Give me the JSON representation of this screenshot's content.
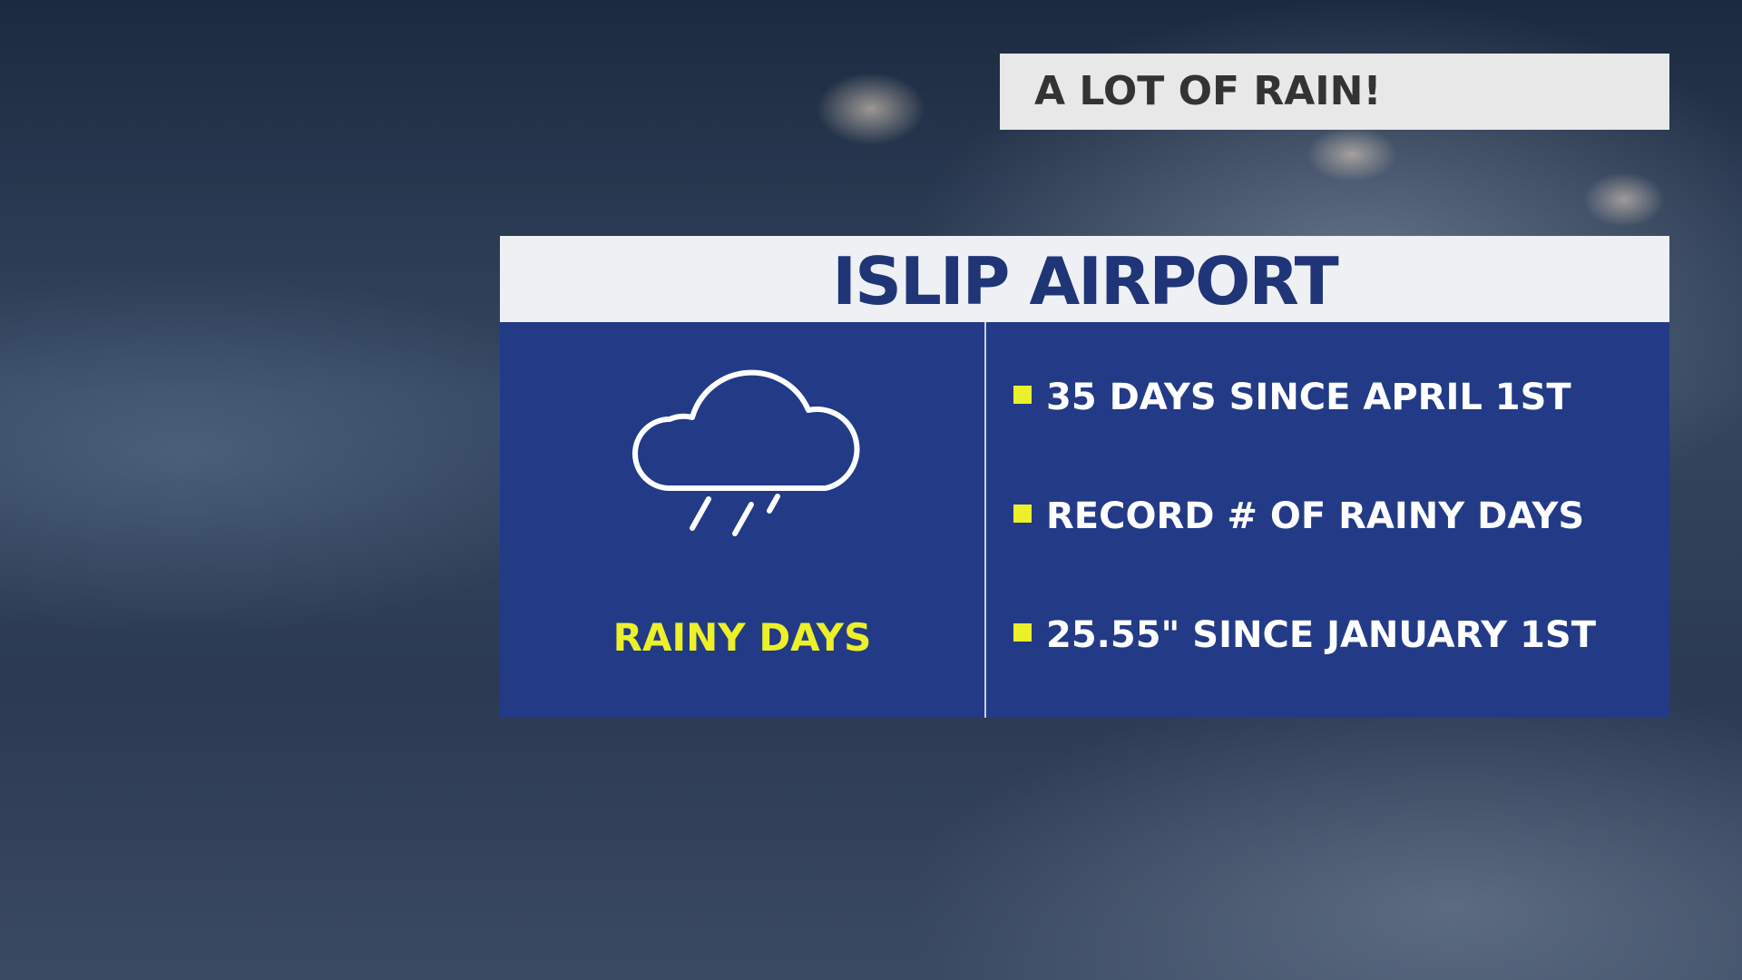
{
  "header": {
    "title": "A LOT OF RAIN!"
  },
  "card": {
    "title": "ISLIP AIRPORT",
    "label": "RAINY DAYS",
    "bullets": [
      "35 DAYS SINCE APRIL 1ST",
      "RECORD # OF RAINY DAYS",
      "25.55\" SINCE JANUARY 1ST"
    ]
  }
}
